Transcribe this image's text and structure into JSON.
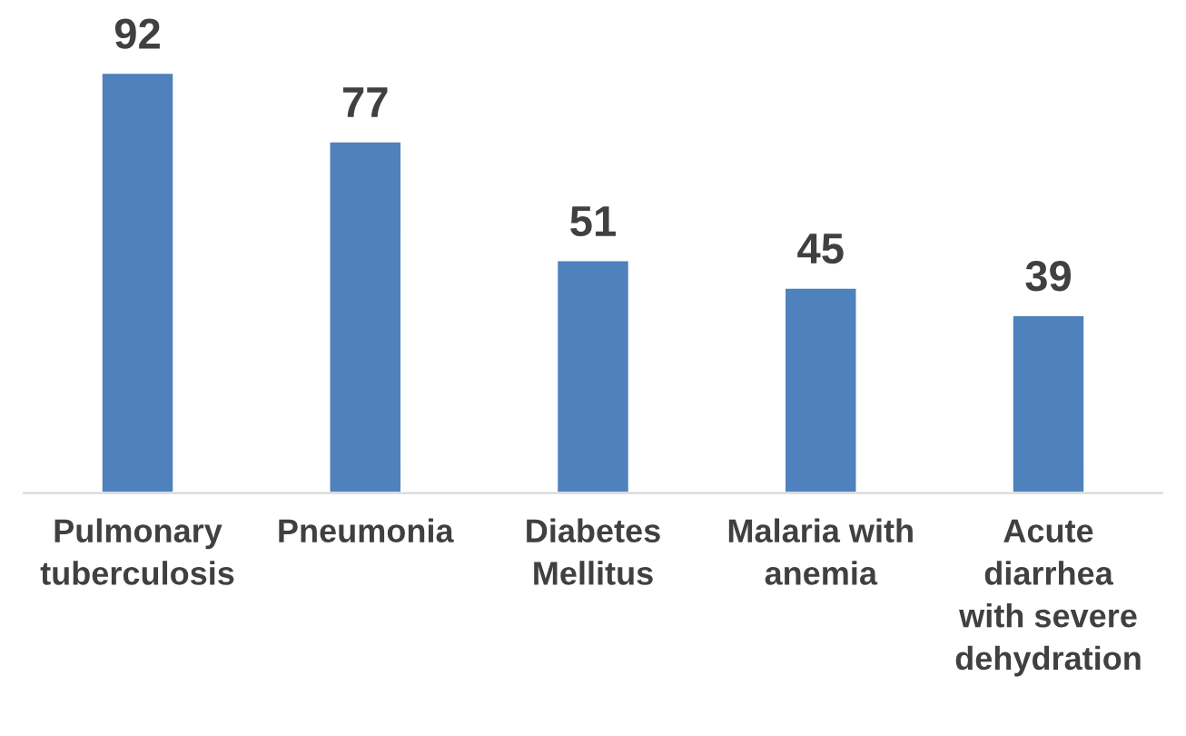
{
  "chart_data": {
    "type": "bar",
    "categories": [
      "Pulmonary\ntuberculosis",
      "Pneumonia",
      "Diabetes\nMellitus",
      "Malaria with\nanemia",
      "Acute\ndiarrhea\nwith severe\ndehydration"
    ],
    "values": [
      92,
      77,
      51,
      45,
      39
    ],
    "color": "#4f81bd",
    "data_labels": true,
    "grid": false,
    "legend": false
  }
}
